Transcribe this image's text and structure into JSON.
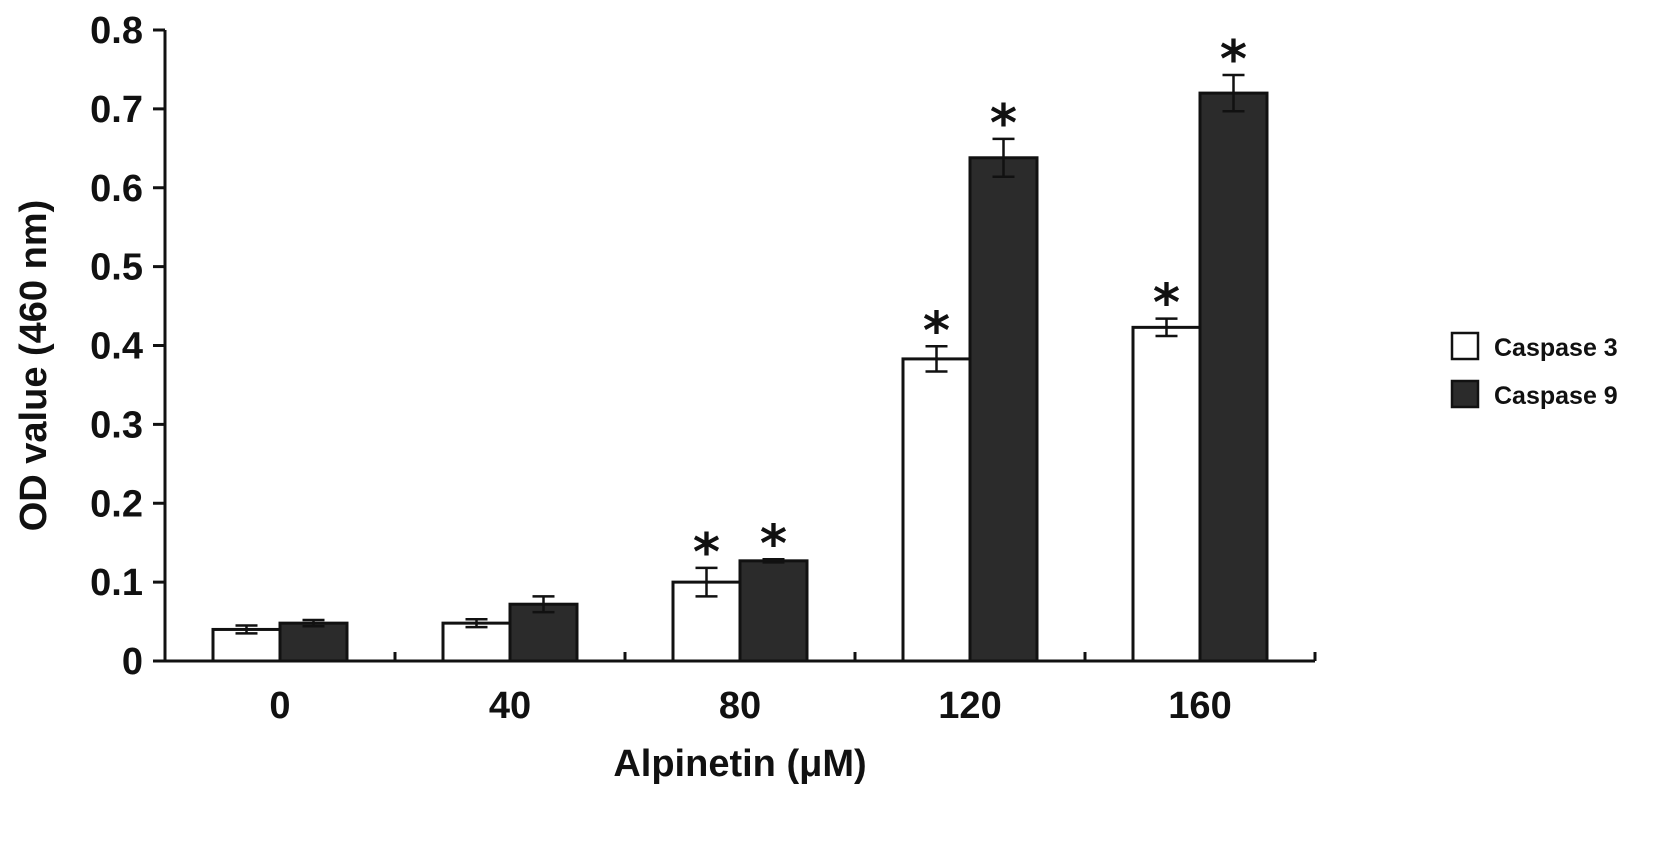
{
  "chart_data": {
    "type": "bar",
    "title": "",
    "xlabel": "Alpinetin (μM)",
    "ylabel": "OD value (460 nm)",
    "ylim": [
      0,
      0.8
    ],
    "yticks": [
      "0",
      "0.1",
      "0.2",
      "0.3",
      "0.4",
      "0.5",
      "0.6",
      "0.7",
      "0.8"
    ],
    "categories": [
      "0",
      "40",
      "80",
      "120",
      "160"
    ],
    "series": [
      {
        "name": "Caspase 3",
        "color": "#ffffff",
        "values": [
          0.04,
          0.048,
          0.1,
          0.383,
          0.423
        ],
        "errors": [
          0.005,
          0.005,
          0.018,
          0.016,
          0.011
        ],
        "significant": [
          false,
          false,
          true,
          true,
          true
        ]
      },
      {
        "name": "Caspase 9",
        "color": "#2b2b2b",
        "values": [
          0.048,
          0.072,
          0.127,
          0.638,
          0.72
        ],
        "errors": [
          0.004,
          0.01,
          0.002,
          0.024,
          0.023
        ],
        "significant": [
          false,
          false,
          true,
          true,
          true
        ]
      }
    ],
    "significance_marker": "*",
    "legend_position": "right",
    "grid": false
  }
}
